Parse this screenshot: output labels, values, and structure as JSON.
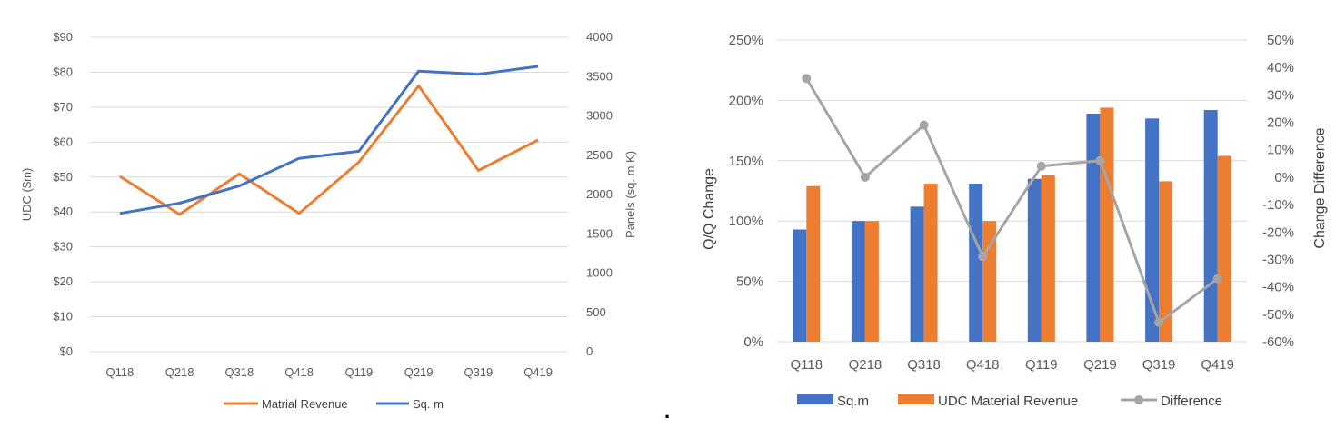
{
  "chart_data": [
    {
      "type": "line",
      "categories": [
        "Q118",
        "Q218",
        "Q318",
        "Q418",
        "Q119",
        "Q219",
        "Q319",
        "Q419"
      ],
      "y_left": {
        "title": "UDC ($m)",
        "range": [
          0,
          90
        ],
        "ticks": [
          "$0",
          "$10",
          "$20",
          "$30",
          "$40",
          "$50",
          "$60",
          "$70",
          "$80",
          "$90"
        ]
      },
      "y_right": {
        "title": "Panels (sq. m K)",
        "range": [
          0,
          4000
        ],
        "ticks": [
          "0",
          "500",
          "1000",
          "1500",
          "2000",
          "2500",
          "3000",
          "3500",
          "4000"
        ]
      },
      "series": [
        {
          "name": "Matrial Revenue",
          "axis": "left",
          "color": "#ED7D31",
          "values": [
            50.2,
            39.3,
            50.9,
            39.6,
            54.3,
            76.1,
            51.9,
            60.6
          ]
        },
        {
          "name": "Sq. m",
          "axis": "right",
          "color": "#4472C4",
          "values": [
            1760,
            1890,
            2110,
            2460,
            2550,
            3570,
            3530,
            3630
          ]
        }
      ],
      "grid": true,
      "legend": "bottom"
    },
    {
      "type": "bar",
      "categories": [
        "Q118",
        "Q218",
        "Q318",
        "Q418",
        "Q119",
        "Q219",
        "Q319",
        "Q419"
      ],
      "y_left": {
        "title": "Q/Q Change",
        "range": [
          0,
          250
        ],
        "ticks": [
          "0%",
          "50%",
          "100%",
          "150%",
          "200%",
          "250%"
        ]
      },
      "y_right": {
        "title": "Change Difference",
        "range": [
          -60,
          50
        ],
        "ticks": [
          "-60%",
          "-50%",
          "-40%",
          "-30%",
          "-20%",
          "-10%",
          "0%",
          "10%",
          "20%",
          "30%",
          "40%",
          "50%"
        ]
      },
      "series": [
        {
          "name": "Sq.m",
          "kind": "bar",
          "axis": "left",
          "color": "#4472C4",
          "values": [
            93,
            100,
            112,
            131,
            135,
            189,
            185,
            192
          ]
        },
        {
          "name": "UDC Material Revenue",
          "kind": "bar",
          "axis": "left",
          "color": "#ED7D31",
          "values": [
            129,
            100,
            131,
            100,
            138,
            194,
            133,
            154
          ]
        },
        {
          "name": "Difference",
          "kind": "line",
          "axis": "right",
          "color": "#A5A5A5",
          "values": [
            36,
            0,
            19,
            -29,
            4,
            6,
            -53,
            -37
          ]
        }
      ],
      "grid": true,
      "legend": "bottom"
    }
  ],
  "stray_mark": "."
}
